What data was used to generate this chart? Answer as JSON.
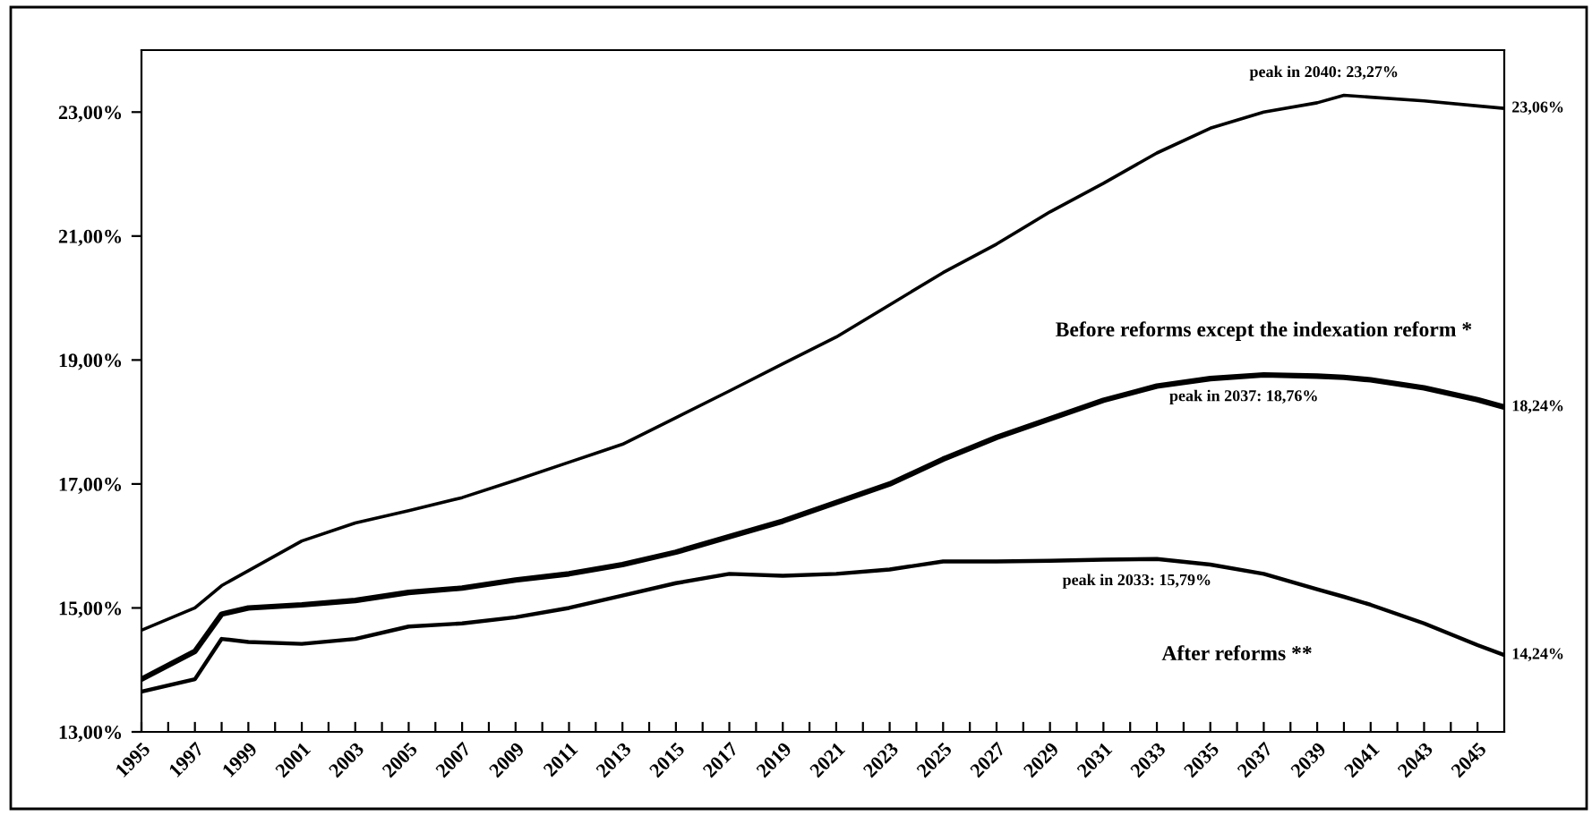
{
  "chart_data": {
    "type": "line",
    "x": [
      1995,
      1997,
      1998,
      1999,
      2001,
      2003,
      2005,
      2007,
      2009,
      2011,
      2013,
      2015,
      2017,
      2019,
      2021,
      2023,
      2025,
      2027,
      2029,
      2031,
      2033,
      2035,
      2037,
      2039,
      2040,
      2041,
      2043,
      2045,
      2046
    ],
    "series": [
      {
        "color": "#000000",
        "values": [
          14.64,
          15.0,
          15.36,
          15.6,
          16.08,
          16.37,
          16.57,
          16.78,
          17.06,
          17.35,
          17.64,
          18.07,
          18.5,
          18.94,
          19.37,
          19.89,
          20.41,
          20.87,
          21.39,
          21.85,
          22.34,
          22.74,
          23.0,
          23.15,
          23.27,
          23.24,
          23.18,
          23.1,
          23.06
        ]
      },
      {
        "name": "Before reforms except the indexation reform *",
        "color": "#000000",
        "values": [
          13.85,
          14.3,
          14.9,
          15.0,
          15.05,
          15.12,
          15.25,
          15.32,
          15.45,
          15.55,
          15.7,
          15.9,
          16.15,
          16.4,
          16.7,
          17.0,
          17.4,
          17.75,
          18.05,
          18.35,
          18.58,
          18.7,
          18.76,
          18.74,
          18.72,
          18.68,
          18.55,
          18.36,
          18.24
        ]
      },
      {
        "name": "After reforms **",
        "color": "#000000",
        "values": [
          13.65,
          13.85,
          14.5,
          14.45,
          14.42,
          14.5,
          14.7,
          14.75,
          14.85,
          15.0,
          15.2,
          15.4,
          15.55,
          15.52,
          15.55,
          15.62,
          15.75,
          15.75,
          15.76,
          15.78,
          15.79,
          15.7,
          15.55,
          15.3,
          15.18,
          15.05,
          14.75,
          14.4,
          14.24
        ]
      }
    ],
    "xlim": [
      1995,
      2046
    ],
    "xticks": [
      1995,
      {
        "value": 1996,
        "label": null
      },
      1997,
      {
        "value": 1998,
        "label": null
      },
      1999,
      {
        "value": 2000,
        "label": null
      },
      2001,
      {
        "value": 2002,
        "label": null
      },
      2003,
      {
        "value": 2004,
        "label": null
      },
      2005,
      {
        "value": 2006,
        "label": null
      },
      2007,
      {
        "value": 2008,
        "label": null
      },
      2009,
      {
        "value": 2010,
        "label": null
      },
      2011,
      {
        "value": 2012,
        "label": null
      },
      2013,
      {
        "value": 2014,
        "label": null
      },
      2015,
      {
        "value": 2016,
        "label": null
      },
      2017,
      {
        "value": 2018,
        "label": null
      },
      2019,
      {
        "value": 2020,
        "label": null
      },
      2021,
      {
        "value": 2022,
        "label": null
      },
      2023,
      {
        "value": 2024,
        "label": null
      },
      2025,
      {
        "value": 2026,
        "label": null
      },
      2027,
      {
        "value": 2028,
        "label": null
      },
      2029,
      {
        "value": 2030,
        "label": null
      },
      2031,
      {
        "value": 2032,
        "label": null
      },
      2033,
      {
        "value": 2034,
        "label": null
      },
      2035,
      {
        "value": 2036,
        "label": null
      },
      2037,
      {
        "value": 2038,
        "label": null
      },
      2039,
      {
        "value": 2040,
        "label": null
      },
      2041,
      {
        "value": 2042,
        "label": null
      },
      2043,
      {
        "value": 2044,
        "label": null
      },
      2045
    ],
    "ylim": [
      13,
      24
    ],
    "yticks": [
      {
        "value": 13,
        "label": "13,00%"
      },
      {
        "value": 15,
        "label": "15,00%"
      },
      {
        "value": 17,
        "label": "17,00%"
      },
      {
        "value": 19,
        "label": "19,00%"
      },
      {
        "value": 21,
        "label": "21,00%"
      },
      {
        "value": 23,
        "label": "23,00%"
      }
    ],
    "annotations": [
      {
        "text": "peak in 2040: 23,27%",
        "x": 2040,
        "y": 23.27
      },
      {
        "text": "23,06%",
        "x": 2046,
        "y": 23.06
      },
      {
        "text": "peak in 2037: 18,76%",
        "x": 2037,
        "y": 18.76
      },
      {
        "text": "18,24%",
        "x": 2046,
        "y": 18.24
      },
      {
        "text": "peak in 2033: 15,79%",
        "x": 2033,
        "y": 15.79
      },
      {
        "text": "14,24%",
        "x": 2046,
        "y": 14.24
      }
    ],
    "grid": false,
    "legend": false,
    "marker": "none",
    "line_style": "solid"
  }
}
